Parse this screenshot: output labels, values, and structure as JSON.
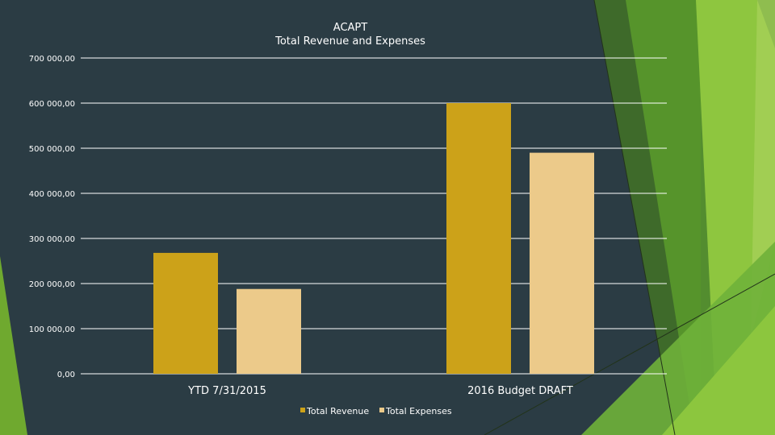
{
  "chart_data": {
    "type": "bar",
    "title": "ACAPT",
    "subtitle": "Total Revenue and Expenses",
    "categories": [
      "YTD 7/31/2015",
      "2016 Budget DRAFT"
    ],
    "series": [
      {
        "name": "Total Revenue",
        "values": [
          268000,
          600000
        ],
        "color": "#cca219"
      },
      {
        "name": "Total Expenses",
        "values": [
          188000,
          490000
        ],
        "color": "#ecca8a"
      }
    ],
    "ylim": [
      0,
      700000
    ],
    "yticks": [
      0,
      100000,
      200000,
      300000,
      400000,
      500000,
      600000,
      700000
    ],
    "ytick_labels": [
      "0,00",
      "100 000,00",
      "200 000,00",
      "300 000,00",
      "400 000,00",
      "500 000,00",
      "600 000,00",
      "700 000,00"
    ],
    "grid": true,
    "legend_position": "bottom"
  },
  "theme": {
    "background": "#2b3c44",
    "accent_greens": [
      "#3f6b2b",
      "#5e9a2a",
      "#8cc63e",
      "#a6d154"
    ]
  }
}
